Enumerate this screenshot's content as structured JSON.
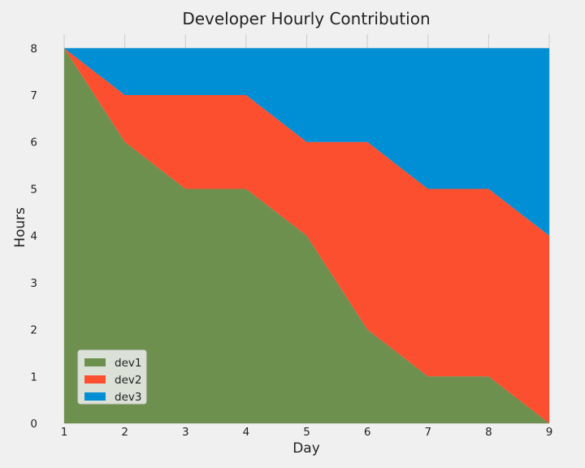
{
  "chart_data": {
    "type": "area",
    "stacked": true,
    "title": "Developer Hourly Contribution",
    "xlabel": "Day",
    "ylabel": "Hours",
    "x": [
      1,
      2,
      3,
      4,
      5,
      6,
      7,
      8,
      9
    ],
    "xlim": [
      1,
      9
    ],
    "ylim": [
      0,
      8.3
    ],
    "xticks": [
      "1",
      "2",
      "3",
      "4",
      "5",
      "6",
      "7",
      "8",
      "9"
    ],
    "yticks": [
      "0",
      "1",
      "2",
      "3",
      "4",
      "5",
      "6",
      "7",
      "8"
    ],
    "grid": true,
    "legend_position": "lower-left",
    "series": [
      {
        "name": "dev1",
        "color": "#6d904f",
        "values": [
          8,
          6,
          5,
          5,
          4,
          2,
          1,
          1,
          0
        ]
      },
      {
        "name": "dev2",
        "color": "#fc4f30",
        "values": [
          0,
          1,
          2,
          2,
          2,
          4,
          4,
          4,
          4
        ]
      },
      {
        "name": "dev3",
        "color": "#008fd5",
        "values": [
          0,
          1,
          1,
          1,
          2,
          2,
          3,
          3,
          4
        ]
      }
    ]
  }
}
